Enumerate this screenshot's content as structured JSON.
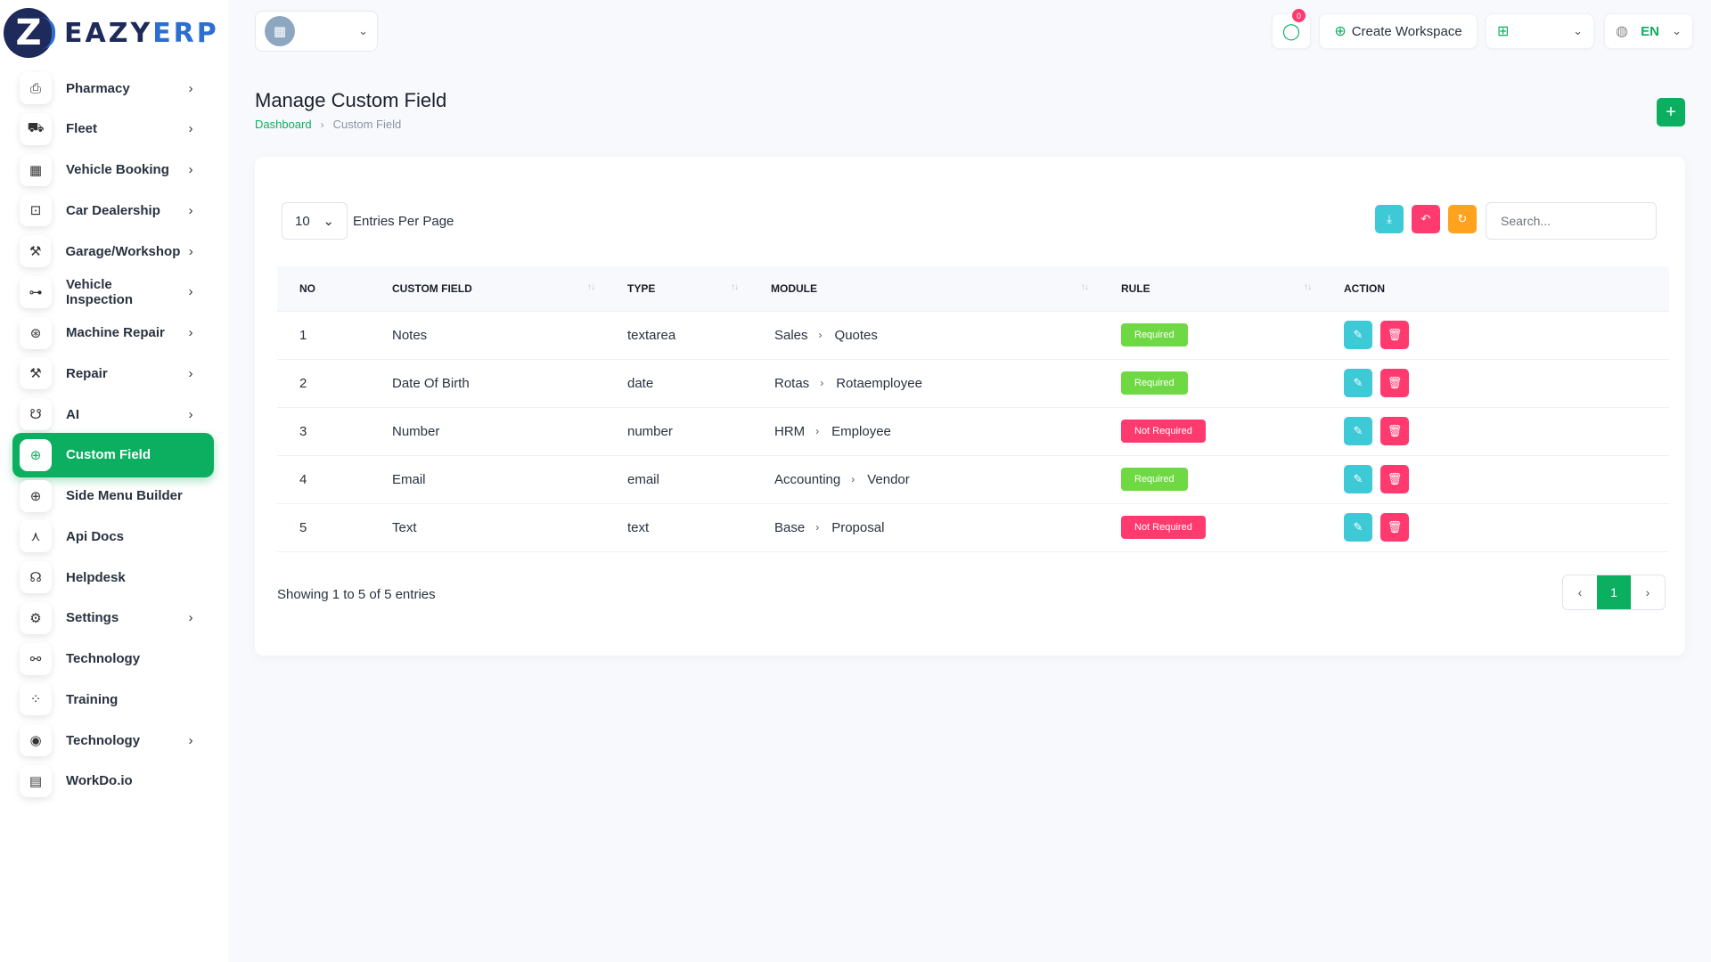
{
  "brand": {
    "logo_mark": "Z",
    "name_part1": "EAZY",
    "name_part2": "ERP"
  },
  "sidebar": {
    "items": [
      {
        "label": "Pharmacy",
        "icon": "clipboard-icon",
        "glyph": "⎙",
        "arrow": true,
        "active": false
      },
      {
        "label": "Fleet",
        "icon": "truck-icon",
        "glyph": "⛟",
        "arrow": true,
        "active": false
      },
      {
        "label": "Vehicle Booking",
        "icon": "calendar-icon",
        "glyph": "▦",
        "arrow": true,
        "active": false
      },
      {
        "label": "Car Dealership",
        "icon": "car-icon",
        "glyph": "⊡",
        "arrow": true,
        "active": false
      },
      {
        "label": "Garage/Workshop",
        "icon": "wrench-icon",
        "glyph": "⚒",
        "arrow": true,
        "active": false
      },
      {
        "label": "Vehicle Inspection",
        "icon": "bike-icon",
        "glyph": "⊶",
        "arrow": true,
        "active": false
      },
      {
        "label": "Machine Repair",
        "icon": "settings-circle-icon",
        "glyph": "⊛",
        "arrow": true,
        "active": false
      },
      {
        "label": "Repair",
        "icon": "tool-icon",
        "glyph": "⚒",
        "arrow": true,
        "active": false
      },
      {
        "label": "AI",
        "icon": "robot-icon",
        "glyph": "☋",
        "arrow": true,
        "active": false
      },
      {
        "label": "Custom Field",
        "icon": "plus-circle-icon",
        "glyph": "⊕",
        "arrow": false,
        "active": true
      },
      {
        "label": "Side Menu Builder",
        "icon": "plus-circle-icon",
        "glyph": "⊕",
        "arrow": false,
        "active": false
      },
      {
        "label": "Api Docs",
        "icon": "network-icon",
        "glyph": "⋏",
        "arrow": false,
        "active": false
      },
      {
        "label": "Helpdesk",
        "icon": "headset-icon",
        "glyph": "☊",
        "arrow": false,
        "active": false
      },
      {
        "label": "Settings",
        "icon": "gear-icon",
        "glyph": "⚙",
        "arrow": true,
        "active": false
      },
      {
        "label": "Technology",
        "icon": "hierarchy-icon",
        "glyph": "⚯",
        "arrow": false,
        "active": false
      },
      {
        "label": "Training",
        "icon": "dots-circle-icon",
        "glyph": "⁘",
        "arrow": false,
        "active": false
      },
      {
        "label": "Technology",
        "icon": "broadcast-icon",
        "glyph": "◉",
        "arrow": true,
        "active": false
      },
      {
        "label": "WorkDo.io",
        "icon": "document-icon",
        "glyph": "▤",
        "arrow": false,
        "active": false
      }
    ]
  },
  "topbar": {
    "message_count": "0",
    "create_workspace": "Create Workspace",
    "language": "EN"
  },
  "page": {
    "title": "Manage Custom Field",
    "breadcrumb_home": "Dashboard",
    "breadcrumb_current": "Custom Field"
  },
  "table_controls": {
    "per_page": "10",
    "entries_label": "Entries Per Page",
    "search_placeholder": "Search..."
  },
  "table": {
    "headers": [
      "NO",
      "CUSTOM FIELD",
      "TYPE",
      "MODULE",
      "RULE",
      "ACTION"
    ],
    "rows": [
      {
        "no": "1",
        "field": "Notes",
        "type": "textarea",
        "module": "Sales",
        "submodule": "Quotes",
        "rule": "Required",
        "required": true
      },
      {
        "no": "2",
        "field": "Date Of Birth",
        "type": "date",
        "module": "Rotas",
        "submodule": "Rotaemployee",
        "rule": "Required",
        "required": true
      },
      {
        "no": "3",
        "field": "Number",
        "type": "number",
        "module": "HRM",
        "submodule": "Employee",
        "rule": "Not Required",
        "required": false
      },
      {
        "no": "4",
        "field": "Email",
        "type": "email",
        "module": "Accounting",
        "submodule": "Vendor",
        "rule": "Required",
        "required": true
      },
      {
        "no": "5",
        "field": "Text",
        "type": "text",
        "module": "Base",
        "submodule": "Proposal",
        "rule": "Not Required",
        "required": false
      }
    ]
  },
  "footer": {
    "showing": "Showing 1 to 5 of 5 entries",
    "current_page": "1"
  },
  "colors": {
    "primary": "#0CAF60",
    "info": "#3ec9d6",
    "danger": "#ff3a6e",
    "warning": "#ffa21d",
    "success_badge": "#6fd943"
  }
}
